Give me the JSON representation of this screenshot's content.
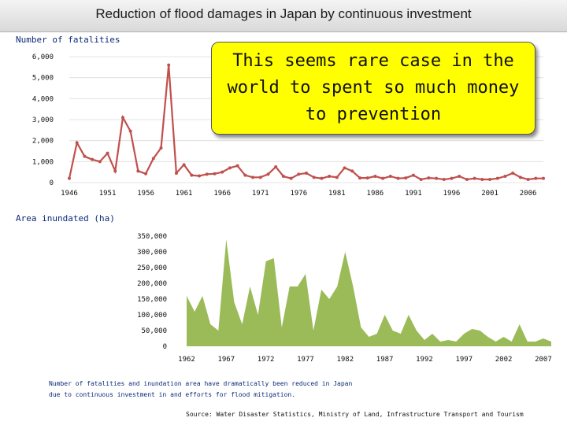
{
  "header": {
    "title": "Reduction of flood damages in Japan by continuous investment"
  },
  "callout": {
    "text": "This seems rare case in the world to spent so much money to prevention"
  },
  "note": {
    "line1": "Number of fatalities and inundation area have dramatically been reduced in Japan",
    "line2": "due to continuous investment in and efforts for flood mitigation."
  },
  "source": "Source: Water Disaster Statistics, Ministry of Land, Infrastructure Transport and Tourism",
  "colors": {
    "fatalities_line": "#c0504d",
    "inundation_area": "#9bbb59",
    "callout_bg": "#ffff00"
  },
  "chart_data": [
    {
      "type": "line",
      "title": "Number of fatalities",
      "ylabel": "Number of fatalities",
      "xlabel": "",
      "ylim": [
        0,
        6000
      ],
      "yticks": [
        "0",
        "1,000",
        "2,000",
        "3,000",
        "4,000",
        "5,000",
        "6,000"
      ],
      "ytick_values": [
        0,
        1000,
        2000,
        3000,
        4000,
        5000,
        6000
      ],
      "xticks": [
        "1946",
        "1951",
        "1956",
        "1961",
        "1966",
        "1971",
        "1976",
        "1981",
        "1986",
        "1991",
        "1996",
        "2001",
        "2006"
      ],
      "xtick_values": [
        1946,
        1951,
        1956,
        1961,
        1966,
        1971,
        1976,
        1981,
        1986,
        1991,
        1996,
        2001,
        2006
      ],
      "x": [
        1946,
        1947,
        1948,
        1949,
        1950,
        1951,
        1952,
        1953,
        1954,
        1955,
        1956,
        1957,
        1958,
        1959,
        1960,
        1961,
        1962,
        1963,
        1964,
        1965,
        1966,
        1967,
        1968,
        1969,
        1970,
        1971,
        1972,
        1973,
        1974,
        1975,
        1976,
        1977,
        1978,
        1979,
        1980,
        1981,
        1982,
        1983,
        1984,
        1985,
        1986,
        1987,
        1988,
        1989,
        1990,
        1991,
        1992,
        1993,
        1994,
        1995,
        1996,
        1997,
        1998,
        1999,
        2000,
        2001,
        2002,
        2003,
        2004,
        2005,
        2006,
        2007,
        2008
      ],
      "series": [
        {
          "name": "Number of fatalities",
          "values": [
            200,
            1900,
            1250,
            1100,
            1000,
            1400,
            550,
            3100,
            2450,
            550,
            420,
            1150,
            1650,
            5600,
            450,
            850,
            350,
            320,
            400,
            420,
            500,
            700,
            800,
            350,
            250,
            250,
            400,
            750,
            300,
            200,
            400,
            450,
            250,
            200,
            300,
            250,
            700,
            550,
            220,
            220,
            300,
            200,
            300,
            200,
            220,
            350,
            150,
            220,
            200,
            150,
            200,
            300,
            150,
            200,
            150,
            150,
            200,
            300,
            450,
            250,
            150,
            200,
            200
          ]
        }
      ]
    },
    {
      "type": "area",
      "title": "Area inundated (ha)",
      "ylabel": "Area inundated (ha)",
      "xlabel": "",
      "ylim": [
        0,
        350000
      ],
      "yticks": [
        "0",
        "50,000",
        "100,000",
        "150,000",
        "200,000",
        "250,000",
        "300,000",
        "350,000"
      ],
      "ytick_values": [
        0,
        50000,
        100000,
        150000,
        200000,
        250000,
        300000,
        350000
      ],
      "xticks": [
        "1962",
        "1967",
        "1972",
        "1977",
        "1982",
        "1987",
        "1992",
        "1997",
        "2002",
        "2007"
      ],
      "xtick_values": [
        1962,
        1967,
        1972,
        1977,
        1982,
        1987,
        1992,
        1997,
        2002,
        2007
      ],
      "x": [
        1962,
        1963,
        1964,
        1965,
        1966,
        1967,
        1968,
        1969,
        1970,
        1971,
        1972,
        1973,
        1974,
        1975,
        1976,
        1977,
        1978,
        1979,
        1980,
        1981,
        1982,
        1983,
        1984,
        1985,
        1986,
        1987,
        1988,
        1989,
        1990,
        1991,
        1992,
        1993,
        1994,
        1995,
        1996,
        1997,
        1998,
        1999,
        2000,
        2001,
        2002,
        2003,
        2004,
        2005,
        2006,
        2007,
        2008
      ],
      "series": [
        {
          "name": "Area inundated",
          "values": [
            160000,
            110000,
            160000,
            70000,
            50000,
            340000,
            140000,
            70000,
            190000,
            100000,
            270000,
            280000,
            60000,
            190000,
            190000,
            230000,
            50000,
            180000,
            150000,
            190000,
            300000,
            190000,
            60000,
            30000,
            40000,
            100000,
            50000,
            40000,
            100000,
            50000,
            20000,
            40000,
            15000,
            20000,
            15000,
            40000,
            55000,
            50000,
            30000,
            15000,
            30000,
            15000,
            70000,
            15000,
            15000,
            25000,
            15000
          ]
        }
      ]
    }
  ]
}
